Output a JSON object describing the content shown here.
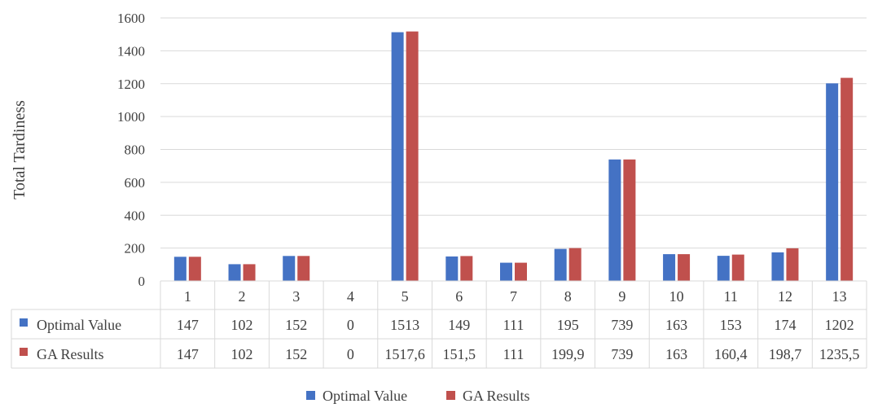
{
  "chart_data": {
    "type": "bar",
    "ylabel": "Total Tardiness",
    "ylim": [
      0,
      1600
    ],
    "yticks": [
      "0",
      "200",
      "400",
      "600",
      "800",
      "1000",
      "1200",
      "1400",
      "1600"
    ],
    "categories": [
      "1",
      "2",
      "3",
      "4",
      "5",
      "6",
      "7",
      "8",
      "9",
      "10",
      "11",
      "12",
      "13"
    ],
    "grid": true,
    "legend_position": "bottom",
    "series": [
      {
        "name": "Optimal Value",
        "color": "#4472c4",
        "values": [
          147,
          102,
          152,
          0,
          1513,
          149,
          111,
          195,
          739,
          163,
          153,
          174,
          1202
        ],
        "labels": [
          "147",
          "102",
          "152",
          "0",
          "1513",
          "149",
          "111",
          "195",
          "739",
          "163",
          "153",
          "174",
          "1202"
        ]
      },
      {
        "name": "GA Results",
        "color": "#c0504d",
        "values": [
          147,
          102,
          152,
          0,
          1517.6,
          151.5,
          111,
          199.9,
          739,
          163,
          160.4,
          198.7,
          1235.5
        ],
        "labels": [
          "147",
          "102",
          "152",
          "0",
          "1517,6",
          "151,5",
          "111",
          "199,9",
          "739",
          "163",
          "160,4",
          "198,7",
          "1235,5"
        ]
      }
    ]
  }
}
